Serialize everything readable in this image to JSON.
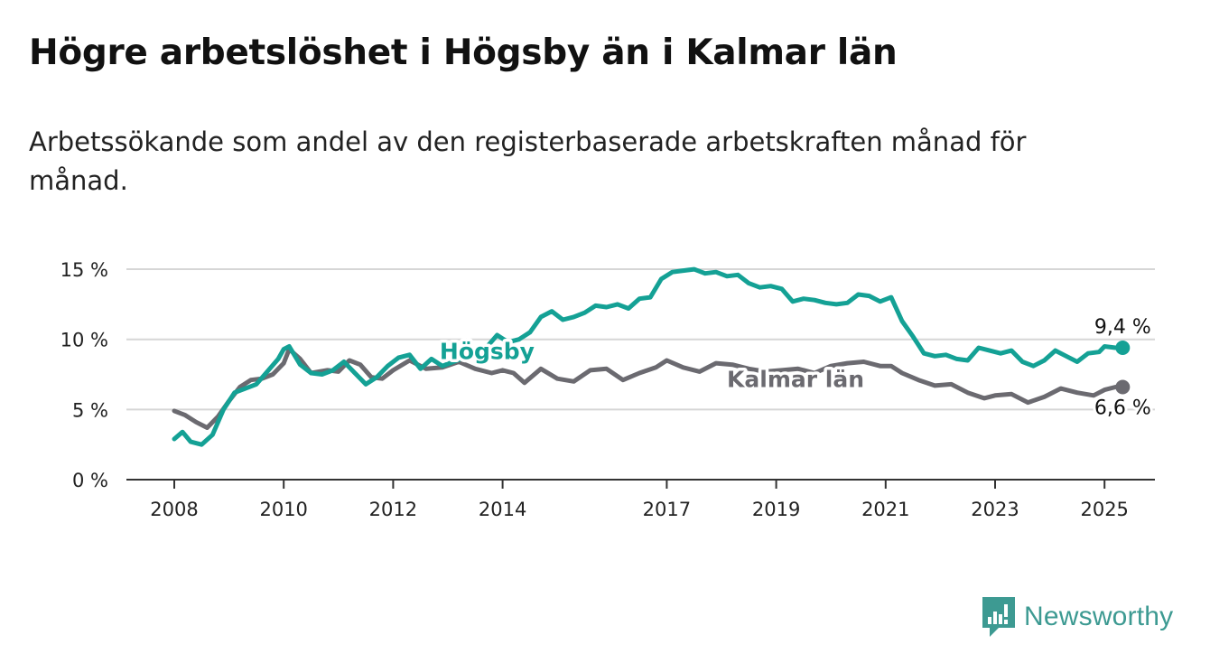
{
  "title": "Högre arbetslöshet i Högsby än i Kalmar län",
  "subtitle": "Arbetssökande som andel av den registerbaserade arbetskraften månad för månad.",
  "brand": {
    "name": "Newsworthy",
    "icon": "newsworthy-logo-icon",
    "color": "#3d9a92"
  },
  "chart_data": {
    "type": "line",
    "title": "Högre arbetslöshet i Högsby än i Kalmar län",
    "subtitle": "Arbetssökande som andel av den registerbaserade arbetskraften månad för månad.",
    "xlabel": "",
    "ylabel": "",
    "ylim": [
      0,
      15
    ],
    "xlim": [
      2006.5,
      2026.0
    ],
    "grid": true,
    "y_ticks": [
      {
        "value": 0,
        "label": "0 %"
      },
      {
        "value": 5,
        "label": "5 %"
      },
      {
        "value": 10,
        "label": "10 %"
      },
      {
        "value": 15,
        "label": "15 %"
      }
    ],
    "x_ticks": [
      {
        "value": 2008,
        "label": "2008"
      },
      {
        "value": 2010,
        "label": "2010"
      },
      {
        "value": 2012,
        "label": "2012"
      },
      {
        "value": 2014,
        "label": "2014"
      },
      {
        "value": 2017,
        "label": "2017"
      },
      {
        "value": 2019,
        "label": "2019"
      },
      {
        "value": 2021,
        "label": "2021"
      },
      {
        "value": 2023,
        "label": "2023"
      },
      {
        "value": 2025,
        "label": "2025"
      }
    ],
    "series": [
      {
        "name": "Kalmar län",
        "color": "#6b6a70",
        "end_label": "6,6 %",
        "x": [
          2008.0,
          2008.2,
          2008.4,
          2008.6,
          2008.8,
          2009.0,
          2009.2,
          2009.4,
          2009.6,
          2009.8,
          2010.0,
          2010.1,
          2010.3,
          2010.5,
          2010.8,
          2011.0,
          2011.2,
          2011.4,
          2011.6,
          2011.8,
          2012.0,
          2012.3,
          2012.6,
          2012.9,
          2013.2,
          2013.5,
          2013.8,
          2014.0,
          2014.2,
          2014.4,
          2014.7,
          2015.0,
          2015.3,
          2015.6,
          2015.9,
          2016.2,
          2016.5,
          2016.8,
          2017.0,
          2017.3,
          2017.6,
          2017.9,
          2018.2,
          2018.5,
          2018.8,
          2019.1,
          2019.4,
          2019.7,
          2020.0,
          2020.3,
          2020.6,
          2020.9,
          2021.1,
          2021.3,
          2021.6,
          2021.9,
          2022.2,
          2022.5,
          2022.8,
          2023.0,
          2023.3,
          2023.6,
          2023.9,
          2024.2,
          2024.5,
          2024.8,
          2025.0,
          2025.2
        ],
        "y": [
          4.9,
          4.6,
          4.1,
          3.7,
          4.5,
          5.6,
          6.6,
          7.1,
          7.2,
          7.5,
          8.3,
          9.3,
          8.6,
          7.6,
          7.8,
          7.7,
          8.5,
          8.2,
          7.3,
          7.2,
          7.8,
          8.5,
          7.9,
          8.0,
          8.4,
          7.9,
          7.6,
          7.8,
          7.6,
          6.9,
          7.9,
          7.2,
          7.0,
          7.8,
          7.9,
          7.1,
          7.6,
          8.0,
          8.5,
          8.0,
          7.7,
          8.3,
          8.2,
          7.9,
          7.7,
          7.8,
          7.9,
          7.6,
          8.1,
          8.3,
          8.4,
          8.1,
          8.1,
          7.6,
          7.1,
          6.7,
          6.8,
          6.2,
          5.8,
          6.0,
          6.1,
          5.5,
          5.9,
          6.5,
          6.2,
          6.0,
          6.4,
          6.6
        ]
      },
      {
        "name": "Högsby",
        "color": "#14a195",
        "end_label": "9,4 %",
        "x": [
          2008.0,
          2008.15,
          2008.3,
          2008.5,
          2008.7,
          2008.9,
          2009.1,
          2009.3,
          2009.5,
          2009.7,
          2009.9,
          2010.0,
          2010.1,
          2010.3,
          2010.5,
          2010.7,
          2010.9,
          2011.1,
          2011.3,
          2011.5,
          2011.7,
          2011.9,
          2012.1,
          2012.3,
          2012.5,
          2012.7,
          2012.9,
          2013.1,
          2013.3,
          2013.5,
          2013.7,
          2013.9,
          2014.1,
          2014.3,
          2014.5,
          2014.7,
          2014.9,
          2015.1,
          2015.3,
          2015.5,
          2015.7,
          2015.9,
          2016.1,
          2016.3,
          2016.5,
          2016.7,
          2016.9,
          2017.1,
          2017.3,
          2017.5,
          2017.7,
          2017.9,
          2018.1,
          2018.3,
          2018.5,
          2018.7,
          2018.9,
          2019.1,
          2019.3,
          2019.5,
          2019.7,
          2019.9,
          2020.1,
          2020.3,
          2020.5,
          2020.7,
          2020.9,
          2021.1,
          2021.3,
          2021.5,
          2021.7,
          2021.9,
          2022.1,
          2022.3,
          2022.5,
          2022.7,
          2022.9,
          2023.1,
          2023.3,
          2023.5,
          2023.7,
          2023.9,
          2024.1,
          2024.3,
          2024.5,
          2024.7,
          2024.9,
          2025.0,
          2025.2
        ],
        "y": [
          2.9,
          3.4,
          2.7,
          2.5,
          3.2,
          5.0,
          6.2,
          6.5,
          6.8,
          7.7,
          8.6,
          9.3,
          9.5,
          8.2,
          7.6,
          7.5,
          7.8,
          8.4,
          7.6,
          6.8,
          7.3,
          8.1,
          8.7,
          8.9,
          7.9,
          8.6,
          8.1,
          8.4,
          8.7,
          8.9,
          9.4,
          10.3,
          9.8,
          10.0,
          10.5,
          11.6,
          12.0,
          11.4,
          11.6,
          11.9,
          12.4,
          12.3,
          12.5,
          12.2,
          12.9,
          13.0,
          14.3,
          14.8,
          14.9,
          15.0,
          14.7,
          14.8,
          14.5,
          14.6,
          14.0,
          13.7,
          13.8,
          13.6,
          12.7,
          12.9,
          12.8,
          12.6,
          12.5,
          12.6,
          13.2,
          13.1,
          12.7,
          13.0,
          11.3,
          10.2,
          9.0,
          8.8,
          8.9,
          8.6,
          8.5,
          9.4,
          9.2,
          9.0,
          9.2,
          8.4,
          8.1,
          8.5,
          9.2,
          8.8,
          8.4,
          9.0,
          9.1,
          9.5,
          9.4
        ]
      }
    ],
    "annotations": [
      {
        "series": "Högsby",
        "text": "Högsby"
      },
      {
        "series": "Kalmar län",
        "text": "Kalmar län"
      }
    ]
  }
}
